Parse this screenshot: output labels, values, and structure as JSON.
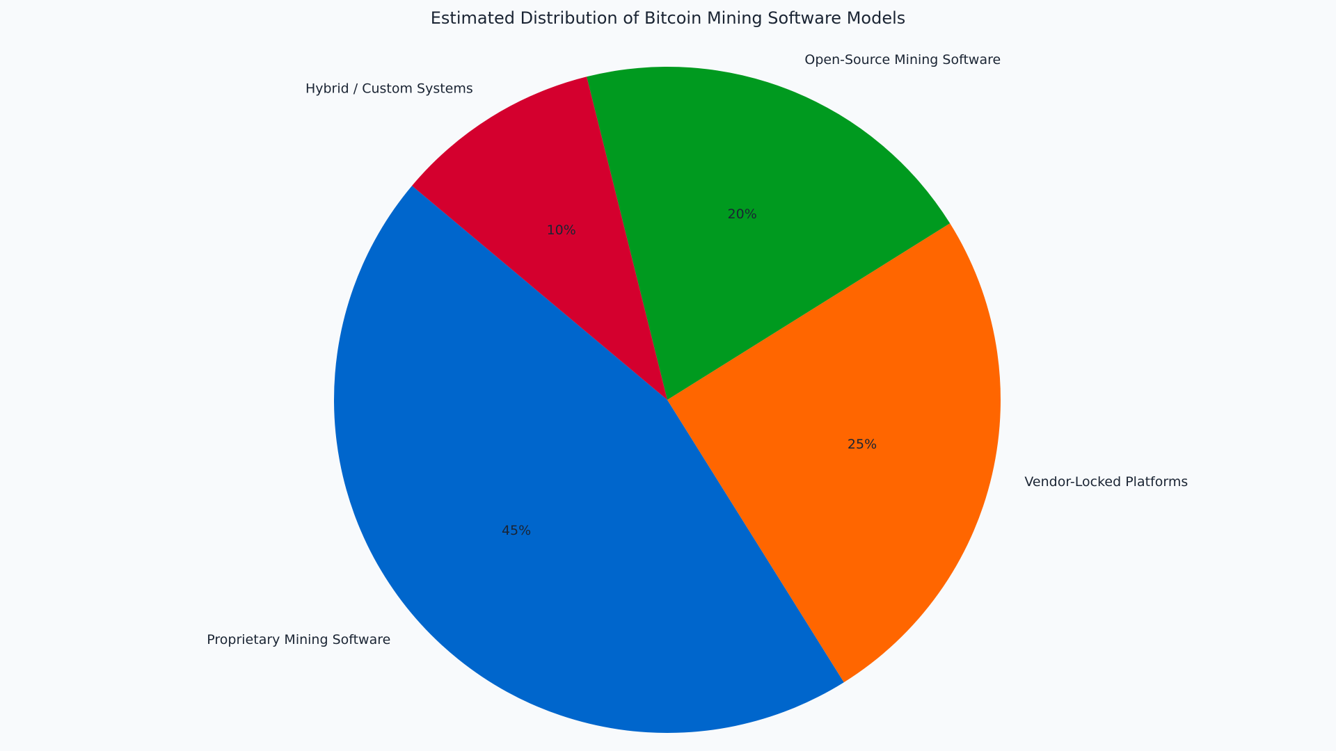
{
  "chart_data": {
    "type": "pie",
    "title": "Estimated Distribution of Bitcoin Mining Software Models",
    "categories": [
      "Proprietary Mining Software",
      "Vendor-Locked Platforms",
      "Open-Source Mining Software",
      "Hybrid / Custom Systems"
    ],
    "values": [
      45,
      25,
      20,
      10
    ],
    "value_labels": [
      "45%",
      "25%",
      "20%",
      "10%"
    ],
    "colors": [
      "#0066cc",
      "#ff6600",
      "#009a1f",
      "#d4002e"
    ]
  }
}
